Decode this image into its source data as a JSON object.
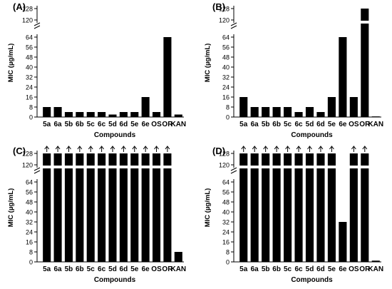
{
  "chart_data": [
    {
      "type": "bar",
      "panel_label": "(A)",
      "ylabel": "MIC (µg/mL)",
      "xlabel": "Compounds",
      "categories": [
        "5a",
        "6a",
        "5b",
        "6b",
        "5c",
        "6c",
        "5d",
        "6d",
        "5e",
        "6e",
        "OS",
        "OR",
        "KAN"
      ],
      "values": [
        8,
        8,
        4,
        4,
        4,
        4,
        2,
        4,
        4,
        16,
        4,
        64,
        2
      ],
      "over_max": [
        false,
        false,
        false,
        false,
        false,
        false,
        false,
        false,
        false,
        false,
        false,
        false,
        false
      ],
      "y_ticks_lower": [
        0,
        8,
        16,
        24,
        32,
        40,
        48,
        56,
        64
      ],
      "y_ticks_upper": [
        120,
        128
      ],
      "axis_break": true,
      "ylim": [
        0,
        128
      ]
    },
    {
      "type": "bar",
      "panel_label": "(B)",
      "ylabel": "MIC (µg/mL)",
      "xlabel": "Compounds",
      "categories": [
        "5a",
        "6a",
        "5b",
        "6b",
        "5c",
        "6c",
        "5d",
        "6d",
        "5e",
        "6e",
        "OS",
        "OR",
        "KAN"
      ],
      "values": [
        16,
        8,
        8,
        8,
        8,
        4,
        8,
        4,
        16,
        64,
        16,
        128,
        0.5
      ],
      "over_max": [
        false,
        false,
        false,
        false,
        false,
        false,
        false,
        false,
        false,
        false,
        false,
        false,
        false
      ],
      "y_ticks_lower": [
        0,
        8,
        16,
        24,
        32,
        40,
        48,
        56,
        64
      ],
      "y_ticks_upper": [
        120,
        128
      ],
      "axis_break": true,
      "ylim": [
        0,
        128
      ]
    },
    {
      "type": "bar",
      "panel_label": "(C)",
      "ylabel": "MIC (µg/mL)",
      "xlabel": "Compounds",
      "categories": [
        "5a",
        "6a",
        "5b",
        "6b",
        "5c",
        "6c",
        "5d",
        "6d",
        "5e",
        "6e",
        "OS",
        "OR",
        "KAN"
      ],
      "values": [
        128,
        128,
        128,
        128,
        128,
        128,
        128,
        128,
        128,
        128,
        128,
        128,
        8
      ],
      "over_max": [
        true,
        true,
        true,
        true,
        true,
        true,
        true,
        true,
        true,
        true,
        true,
        true,
        false
      ],
      "y_ticks_lower": [
        0,
        8,
        16,
        24,
        32,
        40,
        48,
        56,
        64
      ],
      "y_ticks_upper": [
        120,
        128
      ],
      "axis_break": true,
      "ylim": [
        0,
        128
      ]
    },
    {
      "type": "bar",
      "panel_label": "(D)",
      "ylabel": "MIC (µg/mL)",
      "xlabel": "Compounds",
      "categories": [
        "5a",
        "6a",
        "5b",
        "6b",
        "5c",
        "6c",
        "5d",
        "6d",
        "5e",
        "6e",
        "OS",
        "OR",
        "KAN"
      ],
      "values": [
        128,
        128,
        128,
        128,
        128,
        128,
        128,
        128,
        128,
        32,
        128,
        128,
        1
      ],
      "over_max": [
        true,
        true,
        true,
        true,
        true,
        true,
        true,
        true,
        true,
        false,
        true,
        true,
        false
      ],
      "y_ticks_lower": [
        0,
        8,
        16,
        24,
        32,
        40,
        48,
        56,
        64
      ],
      "y_ticks_upper": [
        120,
        128
      ],
      "axis_break": true,
      "ylim": [
        0,
        128
      ]
    }
  ]
}
